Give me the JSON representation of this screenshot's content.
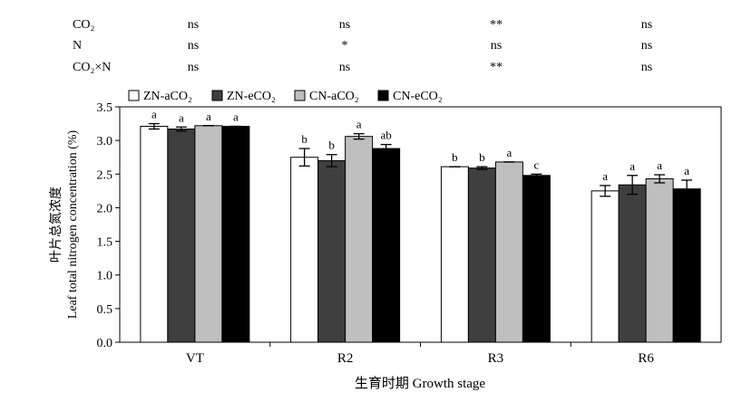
{
  "chart_data": {
    "type": "bar",
    "categories": [
      "VT",
      "R2",
      "R3",
      "R6"
    ],
    "series": [
      {
        "name": "ZN-aCO₂",
        "color": "#ffffff",
        "values": [
          3.21,
          2.75,
          2.61,
          2.25
        ],
        "errors": [
          0.04,
          0.13,
          0.0,
          0.08
        ],
        "letters": [
          "a",
          "b",
          "b",
          "a"
        ]
      },
      {
        "name": "ZN-eCO₂",
        "color": "#3f3f3f",
        "values": [
          3.17,
          2.7,
          2.59,
          2.34
        ],
        "errors": [
          0.03,
          0.09,
          0.02,
          0.14
        ],
        "letters": [
          "a",
          "b",
          "b",
          "a"
        ]
      },
      {
        "name": "CN-aCO₂",
        "color": "#bfbfbf",
        "values": [
          3.22,
          3.06,
          2.68,
          2.43
        ],
        "errors": [
          0.0,
          0.04,
          0.0,
          0.06
        ],
        "letters": [
          "a",
          "a",
          "a",
          "a"
        ]
      },
      {
        "name": "CN-eCO₂",
        "color": "#000000",
        "values": [
          3.21,
          2.88,
          2.48,
          2.28
        ],
        "errors": [
          0.0,
          0.06,
          0.02,
          0.13
        ],
        "letters": [
          "a",
          "ab",
          "c",
          "a"
        ]
      }
    ],
    "ylim": [
      0,
      3.5
    ],
    "yticks": [
      "0.0",
      "0.5",
      "1.0",
      "1.5",
      "2.0",
      "2.5",
      "3.0",
      "3.5"
    ],
    "ylabel_cn": "叶片总氮浓度",
    "ylabel_en": "Leaf total nitrogen concentration (%)",
    "xlabel": "生育时期 Growth stage",
    "legend_position": "top-left",
    "grid": false
  },
  "significance_table": {
    "rows": [
      {
        "label": "CO₂",
        "values": [
          "ns",
          "ns",
          "**",
          "ns"
        ]
      },
      {
        "label": "N",
        "values": [
          "ns",
          "*",
          "ns",
          "ns"
        ]
      },
      {
        "label": "CO₂×N",
        "values": [
          "ns",
          "ns",
          "**",
          "ns"
        ]
      }
    ]
  }
}
